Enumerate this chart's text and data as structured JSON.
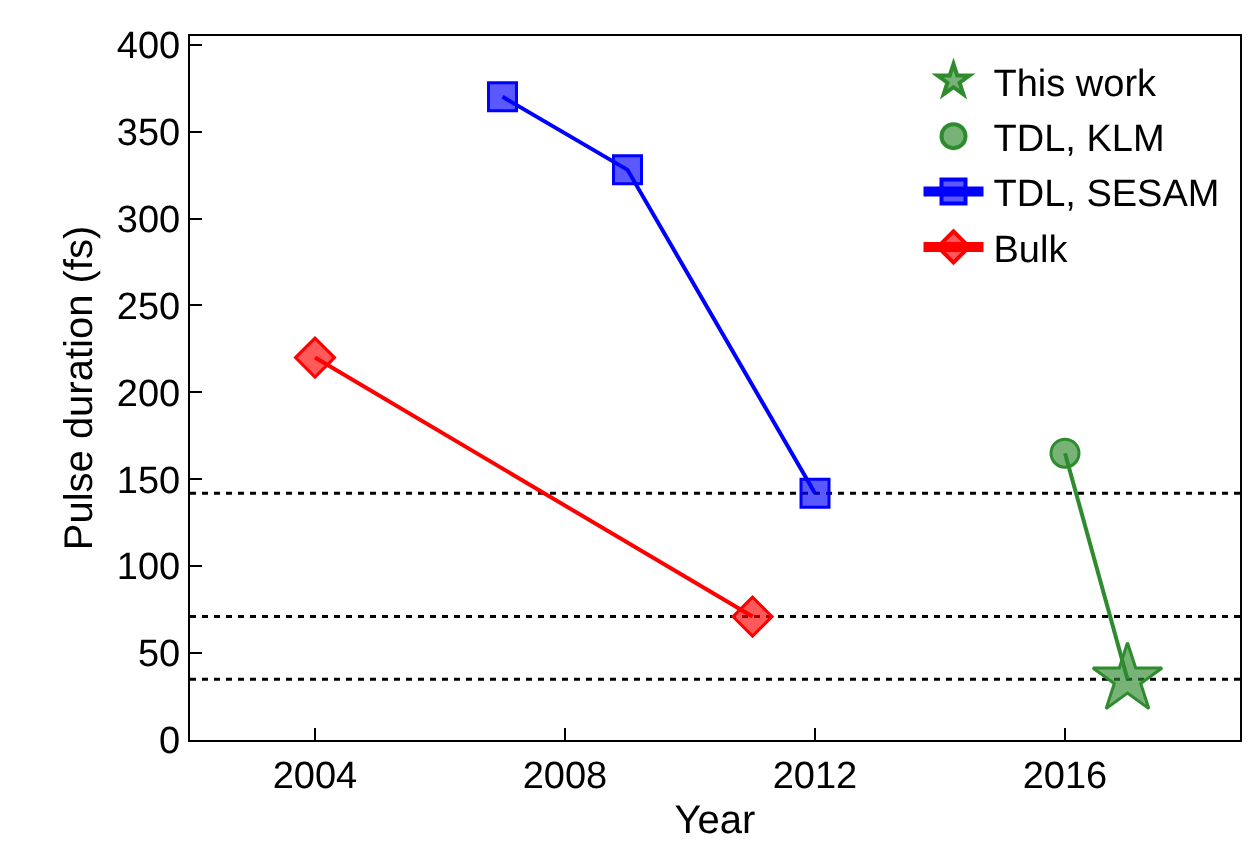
{
  "chart_data": {
    "type": "line",
    "xlabel": "Year",
    "ylabel": "Pulse duration (fs)",
    "xlim": [
      2002,
      2018.8
    ],
    "xticks": [
      2004,
      2008,
      2012,
      2016
    ],
    "ylim": [
      0,
      405
    ],
    "yticks": [
      0,
      50,
      100,
      150,
      200,
      250,
      300,
      350,
      400
    ],
    "grid": false,
    "legend": "top right",
    "series": [
      {
        "name": "This work",
        "color": "#2e8b2e",
        "x": [
          2017
        ],
        "values": [
          35
        ],
        "marker": "star",
        "type": "scatter"
      },
      {
        "name": "TDL, KLM",
        "color": "#2e8b2e",
        "x": [
          2016
        ],
        "values": [
          165
        ],
        "marker": "circle",
        "type": "scatter"
      },
      {
        "name": "TDL, SESAM",
        "color": "#0000ff",
        "x": [
          2007,
          2009,
          2012
        ],
        "values": [
          370,
          328,
          142
        ],
        "marker": "square"
      },
      {
        "name": "Bulk",
        "color": "#ff0000",
        "x": [
          2004,
          2011
        ],
        "values": [
          220,
          71
        ],
        "marker": "diamond"
      },
      {
        "color": "#2e8b2e",
        "x": [
          2016,
          2017
        ],
        "values": [
          165,
          35
        ],
        "marker": "none"
      }
    ],
    "ref_lines": [
      {
        "axis": "y",
        "value": 142,
        "color": "#000000",
        "line_style": "dotted"
      },
      {
        "axis": "y",
        "value": 71,
        "color": "#000000",
        "line_style": "dotted"
      },
      {
        "axis": "y",
        "value": 35,
        "color": "#000000",
        "line_style": "dotted"
      }
    ]
  }
}
